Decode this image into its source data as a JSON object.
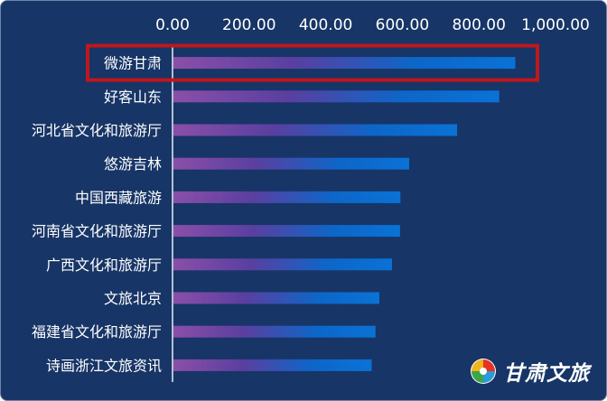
{
  "chart_data": {
    "type": "bar",
    "orientation": "horizontal",
    "categories": [
      "微游甘肃",
      "好客山东",
      "河北省文化和旅游厅",
      "悠游吉林",
      "中国西藏旅游",
      "河南省文化和旅游厅",
      "广西文化和旅游厅",
      "文旅北京",
      "福建省文化和旅游厅",
      "诗画浙江文旅资讯"
    ],
    "values": [
      895,
      853,
      743,
      618,
      595,
      594,
      573,
      540,
      530,
      520
    ],
    "xlim": [
      0,
      1000
    ],
    "xticks": [
      "0.00",
      "200.00",
      "400.00",
      "600.00",
      "800.00",
      "1,000.00"
    ],
    "highlighted_category": "微游甘肃",
    "grid": false,
    "legend": "none",
    "colors": {
      "background": "#173566",
      "bar_start": "#7b4aa3",
      "bar_mid": "#5a3fa0",
      "bar_end": "#0a6fd0",
      "highlight_box": "#c0171c"
    }
  },
  "watermark": {
    "text": "甘肃文旅"
  }
}
